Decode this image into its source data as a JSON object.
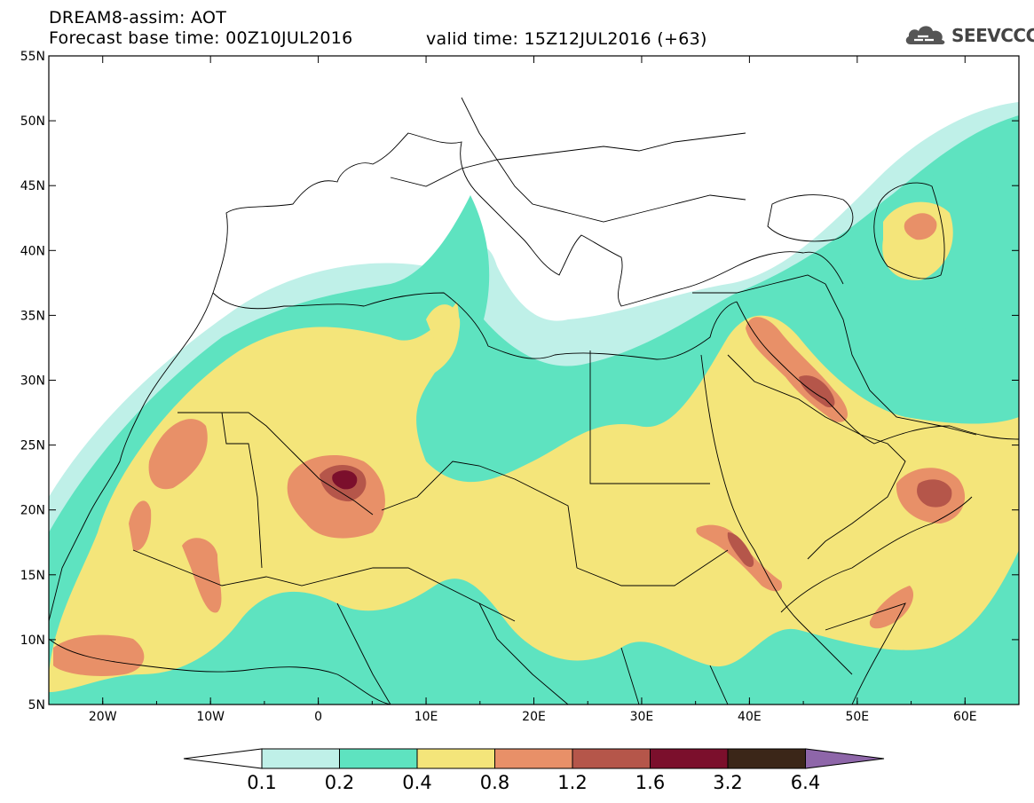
{
  "header": {
    "title": "DREAM8-assim: AOT",
    "base_time": "Forecast base time: 00Z10JUL2016",
    "valid_time": "valid time: 15Z12JUL2016 (+63)"
  },
  "logo": {
    "text": "SEEVCCC",
    "icon": "cloud-icon"
  },
  "map": {
    "lon_range": [
      -25,
      65
    ],
    "lat_range": [
      5,
      55
    ],
    "lon_ticks": [
      "20W",
      "10W",
      "0",
      "10E",
      "20E",
      "30E",
      "40E",
      "50E",
      "60E"
    ],
    "lat_ticks": [
      "5N",
      "10N",
      "15N",
      "20N",
      "25N",
      "30N",
      "35N",
      "40N",
      "45N",
      "50N",
      "55N"
    ]
  },
  "colorbar": {
    "labels": [
      "0.1",
      "0.2",
      "0.4",
      "0.8",
      "1.2",
      "1.6",
      "3.2",
      "6.4"
    ],
    "colors": [
      "#ffffff",
      "#bff0e8",
      "#5ee3c0",
      "#f4e57a",
      "#e89068",
      "#b5564a",
      "#7b0f2c",
      "#3b2618",
      "#8e66a9"
    ]
  },
  "fields": {
    "c1": "#bff0e8",
    "c2": "#5ee3c0",
    "c3": "#f4e57a",
    "c4": "#e89068",
    "c5": "#b5564a",
    "c6": "#7b0f2c"
  }
}
